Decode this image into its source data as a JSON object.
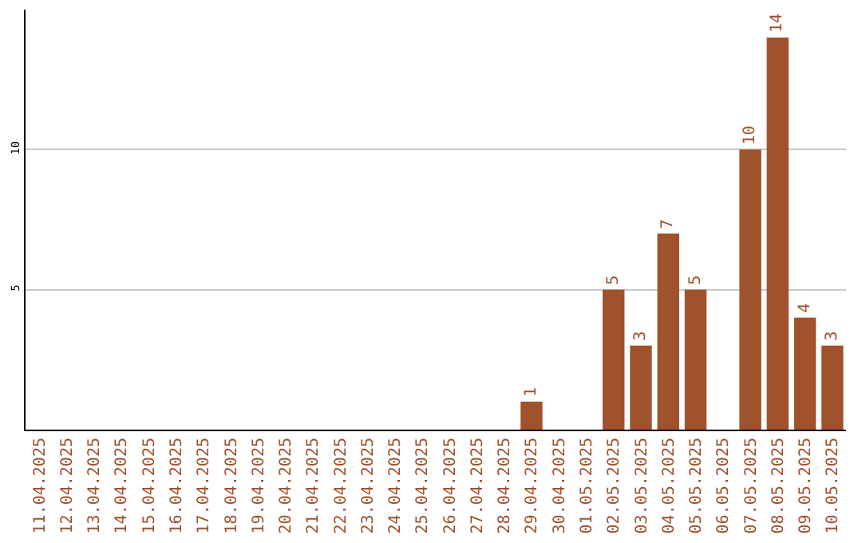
{
  "chart_data": {
    "type": "bar",
    "categories": [
      "11.04.2025",
      "12.04.2025",
      "13.04.2025",
      "14.04.2025",
      "15.04.2025",
      "16.04.2025",
      "17.04.2025",
      "18.04.2025",
      "19.04.2025",
      "20.04.2025",
      "21.04.2025",
      "22.04.2025",
      "23.04.2025",
      "24.04.2025",
      "25.04.2025",
      "26.04.2025",
      "27.04.2025",
      "28.04.2025",
      "29.04.2025",
      "30.04.2025",
      "01.05.2025",
      "02.05.2025",
      "03.05.2025",
      "04.05.2025",
      "05.05.2025",
      "06.05.2025",
      "07.05.2025",
      "08.05.2025",
      "09.05.2025",
      "10.05.2025"
    ],
    "values": [
      0,
      0,
      0,
      0,
      0,
      0,
      0,
      0,
      0,
      0,
      0,
      0,
      0,
      0,
      0,
      0,
      0,
      0,
      1,
      0,
      0,
      5,
      3,
      7,
      5,
      0,
      10,
      14,
      4,
      3
    ],
    "value_labels": [
      null,
      null,
      null,
      null,
      null,
      null,
      null,
      null,
      null,
      null,
      null,
      null,
      null,
      null,
      null,
      null,
      null,
      null,
      "1",
      null,
      null,
      "5",
      "3",
      "7",
      "5",
      null,
      "10",
      "14",
      "4",
      "3"
    ],
    "color": "#a0522d",
    "ylim": [
      0,
      15
    ],
    "yticks": [
      5,
      10
    ],
    "grid": "y",
    "legend": false
  }
}
